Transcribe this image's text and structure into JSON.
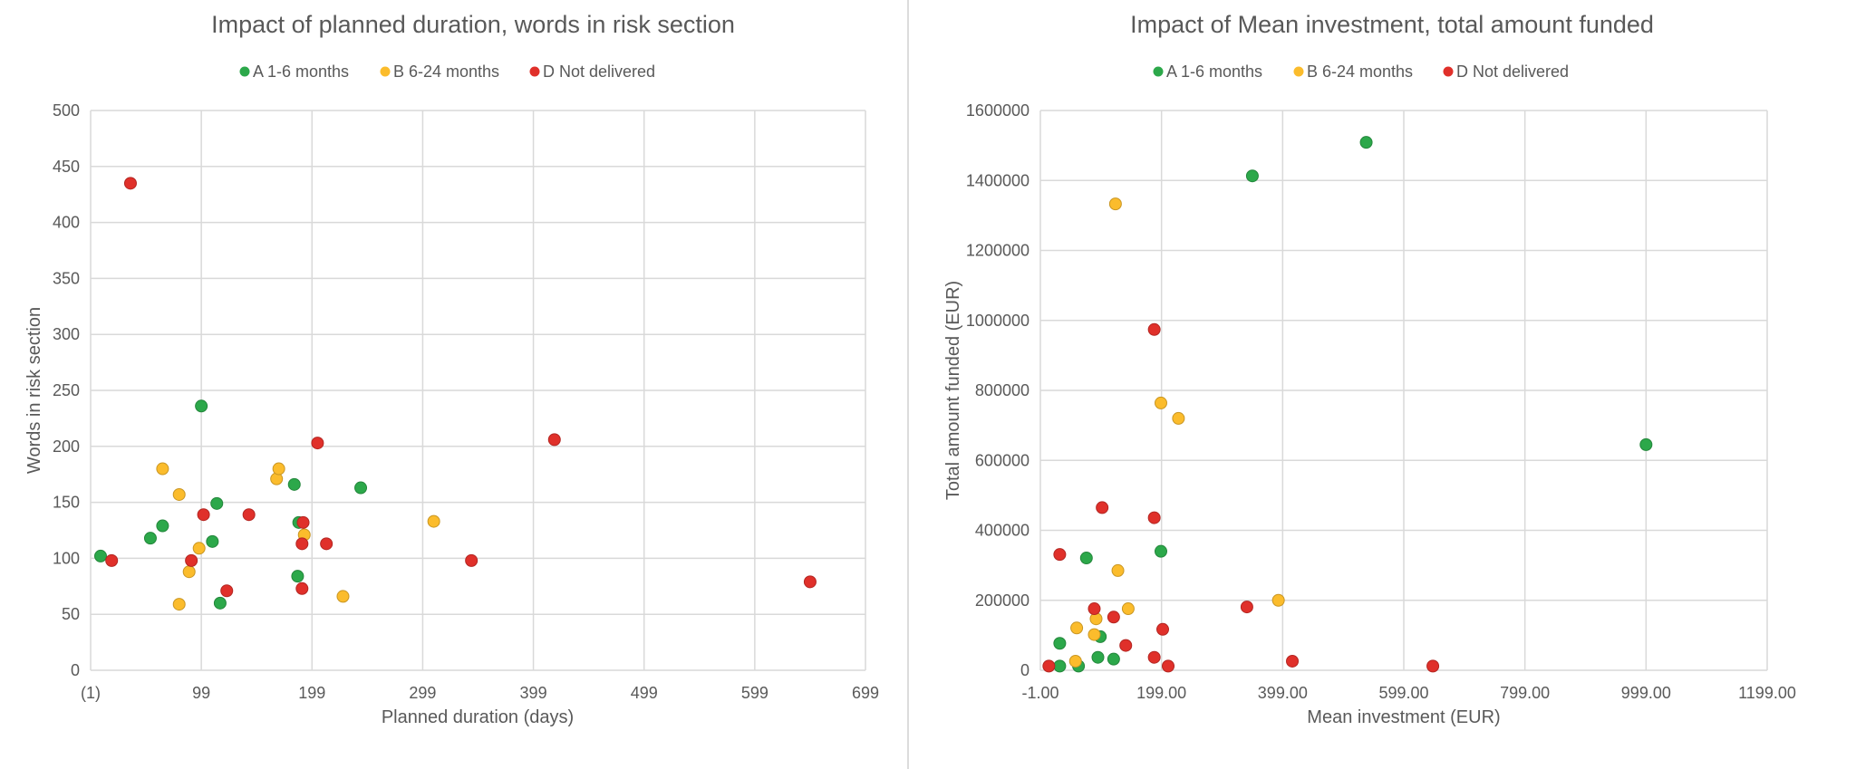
{
  "colors": {
    "A 1-6 months": "#2ca84a",
    "B 6-24 months": "#fbbc2c",
    "D Not delivered": "#e0302a",
    "grid": "#d9d9d9",
    "text": "#595959",
    "divider": "#d0d0d0"
  },
  "chart_data": [
    {
      "type": "scatter",
      "title": "Impact of planned duration, words in risk section",
      "xlabel": "Planned duration (days)",
      "ylabel": "Words in risk section",
      "xlim": [
        -1,
        699
      ],
      "ylim": [
        0,
        500
      ],
      "xticks": [
        "(1)",
        "99",
        "199",
        "299",
        "399",
        "499",
        "599",
        "699"
      ],
      "yticks": [
        "0",
        "50",
        "100",
        "150",
        "200",
        "250",
        "300",
        "350",
        "400",
        "450",
        "500"
      ],
      "grid": true,
      "legend": "top",
      "series": [
        {
          "name": "A 1-6 months",
          "x": [
            8,
            53,
            64,
            99,
            113,
            109,
            116,
            183,
            187,
            186,
            243
          ],
          "y": [
            102,
            118,
            129,
            236,
            149,
            115,
            60,
            166,
            132,
            84,
            163
          ]
        },
        {
          "name": "B 6-24 months",
          "x": [
            64,
            79,
            79,
            88,
            97,
            167,
            169,
            192,
            227,
            309
          ],
          "y": [
            180,
            157,
            59,
            88,
            109,
            171,
            180,
            121,
            66,
            133
          ]
        },
        {
          "name": "D Not delivered",
          "x": [
            35,
            18,
            90,
            101,
            122,
            142,
            204,
            191,
            190,
            190,
            212,
            343,
            418,
            649
          ],
          "y": [
            435,
            98,
            98,
            139,
            71,
            139,
            203,
            132,
            113,
            73,
            113,
            98,
            206,
            79
          ]
        }
      ]
    },
    {
      "type": "scatter",
      "title": "Impact of Mean investment, total amount funded",
      "xlabel": "Mean investment (EUR)",
      "ylabel": "Total amount funded (EUR)",
      "xlim": [
        -1,
        1199
      ],
      "ylim": [
        0,
        1600000
      ],
      "xticks": [
        "-1.00",
        "199.00",
        "399.00",
        "599.00",
        "799.00",
        "999.00",
        "1199.00"
      ],
      "yticks": [
        "0",
        "200000",
        "400000",
        "600000",
        "800000",
        "1000000",
        "1200000",
        "1400000",
        "1600000"
      ],
      "grid": true,
      "legend": "top",
      "series": [
        {
          "name": "A 1-6 months",
          "x": [
            537,
            349,
            999,
            198,
            75,
            31,
            31,
            62,
            98,
            94,
            120
          ],
          "y": [
            1509000,
            1413000,
            645000,
            340000,
            321000,
            77000,
            12000,
            12000,
            96000,
            37000,
            32000
          ]
        },
        {
          "name": "B 6-24 months",
          "x": [
            123,
            198,
            227,
            127,
            144,
            91,
            59,
            88,
            57,
            392
          ],
          "y": [
            1333000,
            764000,
            720000,
            285000,
            176000,
            147000,
            121000,
            102000,
            26000,
            200000
          ]
        },
        {
          "name": "D Not delivered",
          "x": [
            187,
            101,
            187,
            31,
            88,
            120,
            201,
            140,
            187,
            210,
            13,
            340,
            415,
            647
          ],
          "y": [
            974000,
            465000,
            436000,
            331000,
            176000,
            152000,
            117000,
            71000,
            37000,
            12000,
            12000,
            181000,
            26000,
            12000
          ]
        }
      ]
    }
  ]
}
